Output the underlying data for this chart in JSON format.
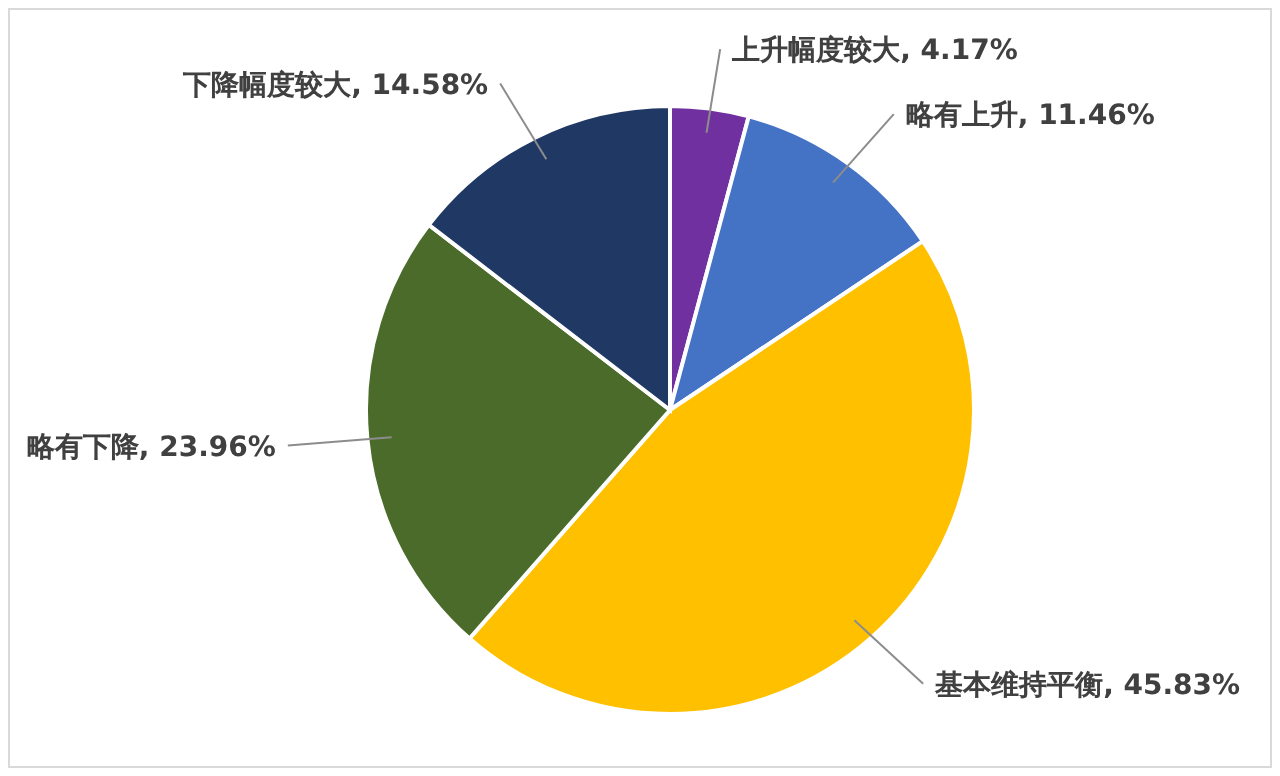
{
  "chart_data": {
    "type": "pie",
    "categories": [
      "上升幅度较大",
      "略有上升",
      "基本维持平衡",
      "略有下降",
      "下降幅度较大"
    ],
    "values": [
      4.17,
      11.46,
      45.83,
      23.96,
      14.58
    ],
    "colors": [
      "#7030a0",
      "#4472c4",
      "#ffc000",
      "#4a6b2a",
      "#203864"
    ],
    "value_labels": [
      "4.17%",
      "11.46%",
      "45.83%",
      "23.96%",
      "14.58%"
    ],
    "legend": false
  }
}
